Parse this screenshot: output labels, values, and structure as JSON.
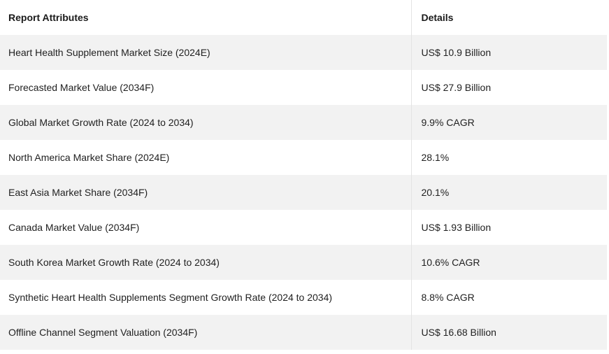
{
  "table": {
    "headers": [
      "Report Attributes",
      "Details"
    ],
    "rows": [
      {
        "attribute": "Heart Health Supplement Market Size (2024E)",
        "detail": "US$ 10.9 Billion"
      },
      {
        "attribute": "Forecasted Market Value (2034F)",
        "detail": "US$ 27.9 Billion"
      },
      {
        "attribute": "Global Market Growth Rate (2024 to 2034)",
        "detail": "9.9% CAGR"
      },
      {
        "attribute": "North America Market Share (2024E)",
        "detail": "28.1%"
      },
      {
        "attribute": "East Asia Market Share (2034F)",
        "detail": "20.1%"
      },
      {
        "attribute": "Canada Market Value (2034F)",
        "detail": "US$ 1.93 Billion"
      },
      {
        "attribute": "South Korea Market Growth Rate (2024 to 2034)",
        "detail": "10.6% CAGR"
      },
      {
        "attribute": "Synthetic Heart Health Supplements Segment Growth Rate (2024 to 2034)",
        "detail": "8.8% CAGR"
      },
      {
        "attribute": "Offline Channel Segment Valuation (2034F)",
        "detail": "US$ 16.68 Billion"
      }
    ]
  }
}
